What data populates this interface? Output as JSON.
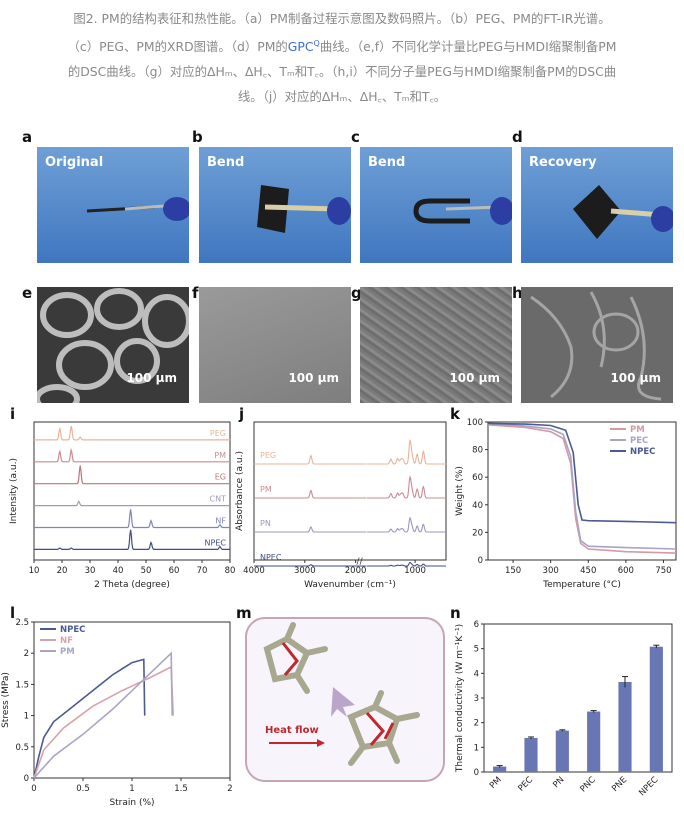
{
  "caption": {
    "line1": "图2. PM的结构表征和热性能。（a）PM制备过程示意图及数码照片。（b）PEG、PM的FT-IR光谱。",
    "line2a": "（c）PEG、PM的XRD图谱。（d）PM的",
    "gpc": "GPC",
    "line2b": "曲线。（e,f）不同化学计量比PEG与HMDI缩聚制备PM",
    "line3": "的DSC曲线。（g）对应的ΔHₘ、ΔH꜀、Tₘ和T꜀。（h,i）不同分子量PEG与HMDI缩聚制备PM的DSC曲",
    "line4": "线。（j）对应的ΔHₘ、ΔH꜀、Tₘ和T꜀。"
  },
  "panels": {
    "a": {
      "label": "a",
      "text": "Original"
    },
    "b": {
      "label": "b",
      "text": "Bend"
    },
    "c": {
      "label": "c",
      "text": "Bend"
    },
    "d": {
      "label": "d",
      "text": "Recovery"
    },
    "e": {
      "label": "e",
      "scale": "100 μm"
    },
    "f": {
      "label": "f",
      "scale": "100 μm"
    },
    "g": {
      "label": "g",
      "scale": "100 μm"
    },
    "h": {
      "label": "h",
      "scale": "100 μm"
    },
    "i": {
      "label": "i"
    },
    "j": {
      "label": "j"
    },
    "k": {
      "label": "k"
    },
    "l": {
      "label": "l"
    },
    "m": {
      "label": "m",
      "arrow_text": "Heat flow"
    },
    "n": {
      "label": "n"
    }
  },
  "chart_data": [
    {
      "id": "i",
      "type": "line",
      "xlabel": "2 Theta (degree)",
      "ylabel": "Intensity (a.u.)",
      "xlim": [
        10,
        80
      ],
      "xticks": [
        10,
        20,
        30,
        40,
        50,
        60,
        70,
        80
      ],
      "series": [
        {
          "name": "PEG",
          "color": "#e8b39a",
          "peaks": [
            [
              19.2,
              0.8
            ],
            [
              23.3,
              1.0
            ],
            [
              26.5,
              0.2
            ]
          ]
        },
        {
          "name": "PM",
          "color": "#c98c93",
          "peaks": [
            [
              19.2,
              0.75
            ],
            [
              23.3,
              0.85
            ]
          ]
        },
        {
          "name": "EG",
          "color": "#b87878",
          "peaks": [
            [
              26.5,
              1.3
            ]
          ]
        },
        {
          "name": "CNT",
          "color": "#a09cb8",
          "peaks": [
            [
              26.0,
              0.3
            ]
          ]
        },
        {
          "name": "NF",
          "color": "#7f86b6",
          "peaks": [
            [
              44.5,
              1.3
            ],
            [
              51.8,
              0.5
            ],
            [
              76.4,
              0.2
            ]
          ]
        },
        {
          "name": "NPEC",
          "color": "#3f4e86",
          "peaks": [
            [
              44.5,
              1.4
            ],
            [
              51.8,
              0.5
            ],
            [
              76.4,
              0.2
            ],
            [
              19.2,
              0.1
            ],
            [
              23.3,
              0.1
            ]
          ]
        }
      ]
    },
    {
      "id": "j",
      "type": "line",
      "xlabel": "Wavenumber (cm⁻¹)",
      "ylabel": "Absorbance (a.u.)",
      "xticks": [
        4000,
        3000,
        2000,
        1000
      ],
      "series": [
        {
          "name": "PEG",
          "color": "#e8b39a"
        },
        {
          "name": "PM",
          "color": "#c98c93"
        },
        {
          "name": "PN",
          "color": "#9a97bf"
        },
        {
          "name": "NPEC",
          "color": "#3f4e86"
        }
      ]
    },
    {
      "id": "k",
      "type": "line",
      "xlabel": "Temperature (°C)",
      "ylabel": "Weight (%)",
      "xlim": [
        50,
        800
      ],
      "ylim": [
        0,
        100
      ],
      "xticks": [
        150,
        300,
        450,
        600,
        750
      ],
      "yticks": [
        0,
        20,
        40,
        60,
        80,
        100
      ],
      "legend": "top-right",
      "series": [
        {
          "name": "PM",
          "color": "#d39aa3",
          "points": [
            [
              50,
              98
            ],
            [
              200,
              96
            ],
            [
              300,
              93
            ],
            [
              350,
              88
            ],
            [
              380,
              70
            ],
            [
              400,
              30
            ],
            [
              420,
              12
            ],
            [
              450,
              8
            ],
            [
              600,
              6
            ],
            [
              800,
              5
            ]
          ]
        },
        {
          "name": "PEC",
          "color": "#a8a4c8",
          "points": [
            [
              50,
              99
            ],
            [
              200,
              97
            ],
            [
              300,
              95
            ],
            [
              350,
              91
            ],
            [
              380,
              75
            ],
            [
              400,
              35
            ],
            [
              420,
              14
            ],
            [
              450,
              10
            ],
            [
              600,
              9
            ],
            [
              800,
              8
            ]
          ]
        },
        {
          "name": "NPEC",
          "color": "#4b5a92",
          "points": [
            [
              50,
              99
            ],
            [
              200,
              98.5
            ],
            [
              300,
              97.5
            ],
            [
              360,
              94
            ],
            [
              390,
              78
            ],
            [
              410,
              40
            ],
            [
              425,
              29
            ],
            [
              450,
              28.5
            ],
            [
              600,
              28
            ],
            [
              800,
              27
            ]
          ]
        }
      ]
    },
    {
      "id": "l",
      "type": "line",
      "xlabel": "Strain (%)",
      "ylabel": "Stress (MPa)",
      "xlim": [
        0,
        2.0
      ],
      "ylim": [
        0,
        2.5
      ],
      "xticks": [
        0.0,
        0.5,
        1.0,
        1.5,
        2.0
      ],
      "yticks": [
        0.0,
        0.5,
        1.0,
        1.5,
        2.0,
        2.5
      ],
      "legend": "top-left",
      "series": [
        {
          "name": "NPEC",
          "color": "#4b5a92",
          "points": [
            [
              0,
              0
            ],
            [
              0.05,
              0.35
            ],
            [
              0.1,
              0.65
            ],
            [
              0.2,
              0.9
            ],
            [
              0.4,
              1.15
            ],
            [
              0.6,
              1.4
            ],
            [
              0.8,
              1.65
            ],
            [
              1.0,
              1.85
            ],
            [
              1.12,
              1.9
            ],
            [
              1.13,
              1.0
            ]
          ]
        },
        {
          "name": "NF",
          "color": "#d9a2a9",
          "points": [
            [
              0,
              0
            ],
            [
              0.1,
              0.45
            ],
            [
              0.3,
              0.8
            ],
            [
              0.6,
              1.15
            ],
            [
              0.9,
              1.4
            ],
            [
              1.2,
              1.62
            ],
            [
              1.4,
              1.78
            ],
            [
              1.42,
              1.0
            ]
          ]
        },
        {
          "name": "PM",
          "color": "#a8a4c8",
          "points": [
            [
              0,
              0
            ],
            [
              0.2,
              0.35
            ],
            [
              0.5,
              0.7
            ],
            [
              0.8,
              1.1
            ],
            [
              1.1,
              1.55
            ],
            [
              1.3,
              1.85
            ],
            [
              1.4,
              2.0
            ],
            [
              1.41,
              1.0
            ]
          ]
        }
      ]
    },
    {
      "id": "n",
      "type": "bar",
      "xlabel": "",
      "ylabel": "Thermal conductivity (W m⁻¹K⁻¹)",
      "ylim": [
        0,
        6
      ],
      "yticks": [
        0,
        1,
        2,
        3,
        4,
        5,
        6
      ],
      "categories": [
        "PM",
        "PEC",
        "PN",
        "PNC",
        "PNE",
        "NPEC"
      ],
      "values": [
        0.22,
        1.38,
        1.68,
        2.45,
        3.65,
        5.08
      ],
      "errors": [
        0.04,
        0.04,
        0.03,
        0.04,
        0.22,
        0.06
      ],
      "color": "#6876b3"
    }
  ]
}
